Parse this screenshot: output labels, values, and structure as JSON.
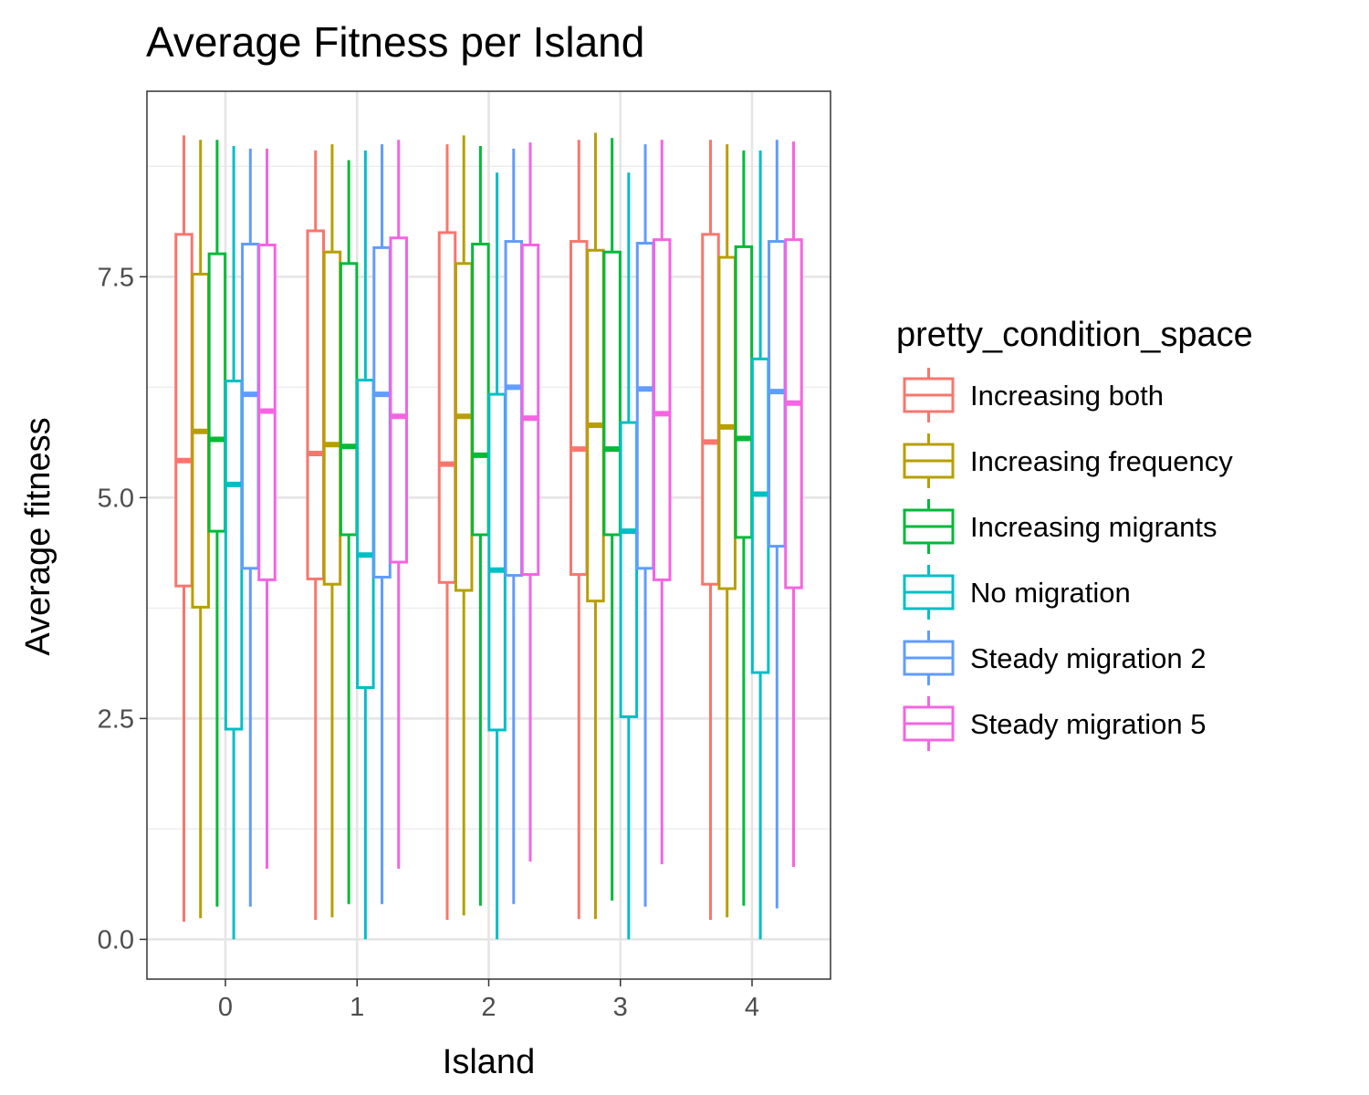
{
  "chart_data": {
    "type": "boxplot",
    "title": "Average Fitness per Island",
    "xlabel": "Island",
    "ylabel": "Average fitness",
    "categories": [
      "0",
      "1",
      "2",
      "3",
      "4"
    ],
    "y_ticks": [
      "0.0",
      "2.5",
      "5.0",
      "7.5"
    ],
    "y_tick_values": [
      0,
      2.5,
      5,
      7.5
    ],
    "ylim": [
      -0.45,
      9.6
    ],
    "grid": true,
    "legend": {
      "title": "pretty_condition_space",
      "position": "right"
    },
    "series": [
      {
        "name": "Increasing both",
        "color": "#F8766D",
        "boxes": [
          {
            "min": 0.2,
            "q1": 4.0,
            "median": 5.42,
            "q3": 7.98,
            "max": 9.1
          },
          {
            "min": 0.22,
            "q1": 4.08,
            "median": 5.5,
            "q3": 8.02,
            "max": 8.93
          },
          {
            "min": 0.22,
            "q1": 4.04,
            "median": 5.38,
            "q3": 8.0,
            "max": 9.0
          },
          {
            "min": 0.23,
            "q1": 4.13,
            "median": 5.55,
            "q3": 7.9,
            "max": 9.05
          },
          {
            "min": 0.22,
            "q1": 4.02,
            "median": 5.63,
            "q3": 7.98,
            "max": 9.05
          }
        ]
      },
      {
        "name": "Increasing frequency",
        "color": "#B79F00",
        "boxes": [
          {
            "min": 0.24,
            "q1": 3.76,
            "median": 5.75,
            "q3": 7.53,
            "max": 9.05
          },
          {
            "min": 0.25,
            "q1": 4.02,
            "median": 5.6,
            "q3": 7.78,
            "max": 9.0
          },
          {
            "min": 0.27,
            "q1": 3.95,
            "median": 5.92,
            "q3": 7.65,
            "max": 9.1
          },
          {
            "min": 0.23,
            "q1": 3.83,
            "median": 5.82,
            "q3": 7.8,
            "max": 9.13
          },
          {
            "min": 0.25,
            "q1": 3.97,
            "median": 5.8,
            "q3": 7.72,
            "max": 9.0
          }
        ]
      },
      {
        "name": "Increasing migrants",
        "color": "#00BA38",
        "boxes": [
          {
            "min": 0.37,
            "q1": 4.62,
            "median": 5.66,
            "q3": 7.76,
            "max": 9.05
          },
          {
            "min": 0.4,
            "q1": 4.58,
            "median": 5.58,
            "q3": 7.65,
            "max": 8.82
          },
          {
            "min": 0.38,
            "q1": 4.58,
            "median": 5.48,
            "q3": 7.87,
            "max": 8.98
          },
          {
            "min": 0.44,
            "q1": 4.58,
            "median": 5.55,
            "q3": 7.78,
            "max": 9.07
          },
          {
            "min": 0.38,
            "q1": 4.55,
            "median": 5.67,
            "q3": 7.84,
            "max": 8.93
          }
        ]
      },
      {
        "name": "No migration",
        "color": "#00BFC4",
        "boxes": [
          {
            "min": 0.0,
            "q1": 2.38,
            "median": 5.15,
            "q3": 6.32,
            "max": 8.98
          },
          {
            "min": 0.0,
            "q1": 2.85,
            "median": 4.35,
            "q3": 6.33,
            "max": 8.93
          },
          {
            "min": 0.0,
            "q1": 2.37,
            "median": 4.18,
            "q3": 6.17,
            "max": 8.68
          },
          {
            "min": 0.0,
            "q1": 2.52,
            "median": 4.62,
            "q3": 5.85,
            "max": 8.68
          },
          {
            "min": 0.0,
            "q1": 3.02,
            "median": 5.04,
            "q3": 6.57,
            "max": 8.93
          }
        ]
      },
      {
        "name": "Steady migration 2",
        "color": "#619CFF",
        "boxes": [
          {
            "min": 0.37,
            "q1": 4.2,
            "median": 6.17,
            "q3": 7.87,
            "max": 8.95
          },
          {
            "min": 0.4,
            "q1": 4.1,
            "median": 6.17,
            "q3": 7.83,
            "max": 9.0
          },
          {
            "min": 0.4,
            "q1": 4.12,
            "median": 6.25,
            "q3": 7.9,
            "max": 8.95
          },
          {
            "min": 0.37,
            "q1": 4.2,
            "median": 6.23,
            "q3": 7.88,
            "max": 9.0
          },
          {
            "min": 0.35,
            "q1": 4.45,
            "median": 6.2,
            "q3": 7.9,
            "max": 9.05
          }
        ]
      },
      {
        "name": "Steady migration 5",
        "color": "#F564E3",
        "boxes": [
          {
            "min": 0.8,
            "q1": 4.07,
            "median": 5.98,
            "q3": 7.86,
            "max": 8.95
          },
          {
            "min": 0.8,
            "q1": 4.27,
            "median": 5.92,
            "q3": 7.94,
            "max": 9.05
          },
          {
            "min": 0.88,
            "q1": 4.13,
            "median": 5.9,
            "q3": 7.86,
            "max": 9.02
          },
          {
            "min": 0.85,
            "q1": 4.07,
            "median": 5.95,
            "q3": 7.92,
            "max": 9.05
          },
          {
            "min": 0.82,
            "q1": 3.98,
            "median": 6.07,
            "q3": 7.92,
            "max": 9.03
          }
        ]
      }
    ]
  }
}
